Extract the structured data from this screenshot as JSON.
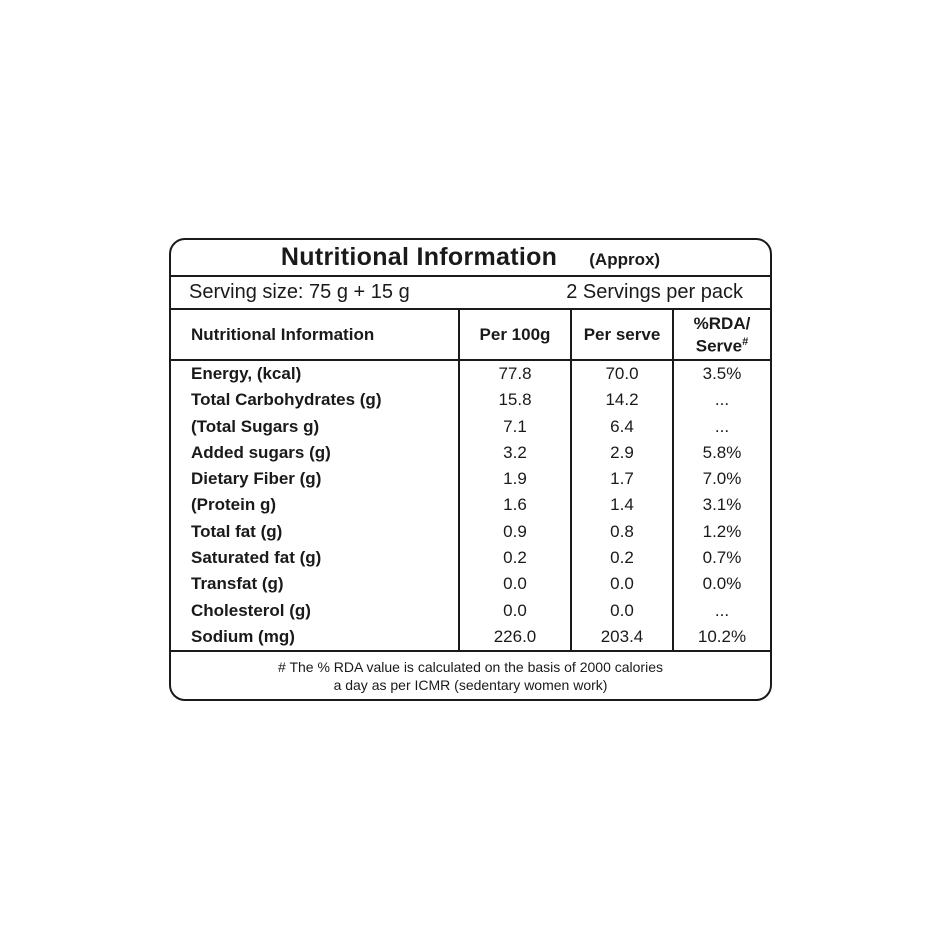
{
  "label": {
    "title": "Nutritional Information",
    "approx": "(Approx)",
    "serving_size": "Serving size: 75 g + 15 g",
    "servings_per_pack": "2 Servings per pack",
    "columns": {
      "name": "Nutritional Information",
      "per_100g": "Per 100g",
      "per_serve": "Per serve",
      "rda_line1": "%RDA/",
      "rda_line2": "Serve",
      "rda_sup": "#"
    },
    "rows": [
      {
        "label": "Energy, (kcal)",
        "per_100g": "77.8",
        "per_serve": "70.0",
        "rda": "3.5%"
      },
      {
        "label": "Total Carbohydrates (g)",
        "per_100g": "15.8",
        "per_serve": "14.2",
        "rda": "..."
      },
      {
        "label": "(Total Sugars g)",
        "per_100g": "7.1",
        "per_serve": "6.4",
        "rda": "..."
      },
      {
        "label": "Added sugars (g)",
        "per_100g": "3.2",
        "per_serve": "2.9",
        "rda": "5.8%"
      },
      {
        "label": "Dietary Fiber (g)",
        "per_100g": "1.9",
        "per_serve": "1.7",
        "rda": "7.0%"
      },
      {
        "label": "(Protein g)",
        "per_100g": "1.6",
        "per_serve": "1.4",
        "rda": "3.1%"
      },
      {
        "label": "Total fat (g)",
        "per_100g": "0.9",
        "per_serve": "0.8",
        "rda": "1.2%"
      },
      {
        "label": "Saturated fat (g)",
        "per_100g": "0.2",
        "per_serve": "0.2",
        "rda": "0.7%"
      },
      {
        "label": "Transfat (g)",
        "per_100g": "0.0",
        "per_serve": "0.0",
        "rda": "0.0%"
      },
      {
        "label": "Cholesterol (g)",
        "per_100g": "0.0",
        "per_serve": "0.0",
        "rda": "..."
      },
      {
        "label": "Sodium (mg)",
        "per_100g": "226.0",
        "per_serve": "203.4",
        "rda": "10.2%"
      }
    ],
    "footnote_line1": "# The % RDA value is calculated on the basis of 2000 calories",
    "footnote_line2": "a day as per ICMR (sedentary women work)",
    "colors": {
      "text": "#1a1a1a",
      "border": "#1a1a1a",
      "background": "#ffffff"
    }
  }
}
